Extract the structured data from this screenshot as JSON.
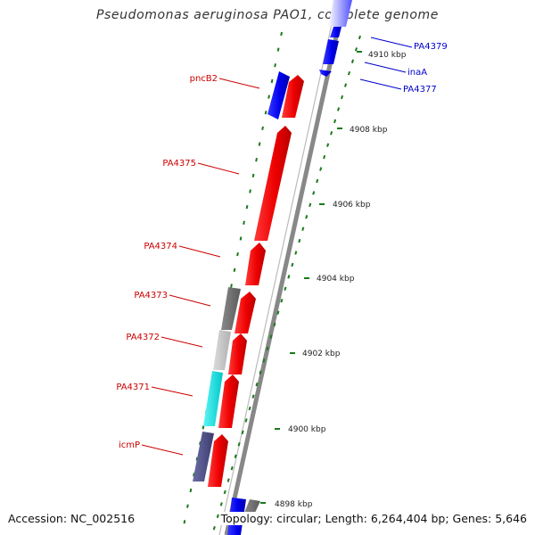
{
  "title": "Pseudomonas aeruginosa PAO1, complete genome",
  "footer": {
    "accession": "Accession: NC_002516",
    "summary": "Topology: circular; Length: 6,264,404 bp; Genes: 5,646"
  },
  "colors": {
    "backbone": "#8a8a8a",
    "tick": "#1a7a1a",
    "tick_label": "#222222",
    "strand_minus_label": "#cc0000",
    "strand_plus_label": "#0000cc",
    "red_gene": "#ee0000",
    "blue_gene": "#0000ee",
    "gray_gene": "#777777",
    "light_gray_gene": "#c8c8c8",
    "cyan_gene": "#00dddd",
    "purple_gene": "#55558a"
  },
  "kbp_ticks": [
    "4898 kbp",
    "4900 kbp",
    "4902 kbp",
    "4904 kbp",
    "4906 kbp",
    "4908 kbp",
    "4910 kbp"
  ],
  "genes_labeled": [
    {
      "name": "pncB2",
      "strand": "left"
    },
    {
      "name": "PA4375",
      "strand": "left"
    },
    {
      "name": "PA4374",
      "strand": "left"
    },
    {
      "name": "PA4373",
      "strand": "left"
    },
    {
      "name": "PA4372",
      "strand": "left"
    },
    {
      "name": "PA4371",
      "strand": "left"
    },
    {
      "name": "icmP",
      "strand": "left"
    },
    {
      "name": "PA4379",
      "strand": "right"
    },
    {
      "name": "inaA",
      "strand": "right"
    },
    {
      "name": "PA4377",
      "strand": "right"
    }
  ]
}
